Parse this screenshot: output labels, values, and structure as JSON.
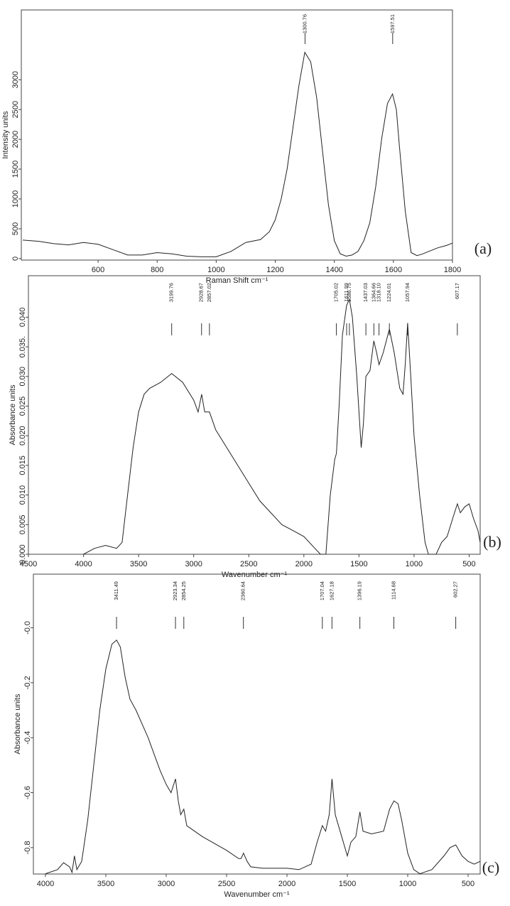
{
  "chart_data": [
    {
      "type": "line",
      "x_label": "Raman Shift cm⁻¹",
      "y_label": "Intensity units",
      "panel_label": "(a)",
      "xlim": [
        340,
        1800
      ],
      "ylim": [
        -25,
        4170
      ],
      "xticks": [
        600,
        800,
        1000,
        1200,
        1400,
        1600,
        1800
      ],
      "yticks": [
        0,
        500,
        1000,
        1500,
        2000,
        2500,
        3000
      ],
      "color": "#222222",
      "peaks": [
        1300.76,
        1597.51
      ],
      "x": [
        345,
        400,
        450,
        500,
        550,
        600,
        650,
        700,
        750,
        800,
        850,
        900,
        950,
        1000,
        1050,
        1100,
        1150,
        1180,
        1200,
        1220,
        1240,
        1260,
        1280,
        1300,
        1320,
        1340,
        1360,
        1380,
        1400,
        1420,
        1440,
        1460,
        1480,
        1500,
        1520,
        1540,
        1560,
        1580,
        1597,
        1610,
        1620,
        1640,
        1660,
        1680,
        1700,
        1720,
        1750,
        1780,
        1800
      ],
      "values": [
        310,
        290,
        250,
        230,
        270,
        240,
        150,
        60,
        60,
        100,
        80,
        40,
        30,
        30,
        120,
        270,
        320,
        450,
        650,
        1000,
        1500,
        2200,
        2900,
        3460,
        3300,
        2700,
        1800,
        900,
        300,
        80,
        40,
        60,
        120,
        300,
        600,
        1200,
        2000,
        2600,
        2760,
        2500,
        1900,
        800,
        100,
        50,
        80,
        120,
        180,
        220,
        260
      ]
    },
    {
      "type": "line",
      "x_label": "Wavenumber cm⁻¹",
      "y_label": "Absorbance units",
      "panel_label": "(b)",
      "xlim": [
        4500,
        400
      ],
      "ylim": [
        0,
        0.047
      ],
      "xticks": [
        4500,
        4000,
        3500,
        3000,
        2500,
        2000,
        1500,
        1000,
        500
      ],
      "yticks": [
        {
          "value": 0,
          "label": "0.000"
        },
        {
          "value": 0.005,
          "label": "0.005"
        },
        {
          "value": 0.01,
          "label": "0.010"
        },
        {
          "value": 0.015,
          "label": "0.015"
        },
        {
          "value": 0.02,
          "label": "0.020"
        },
        {
          "value": 0.025,
          "label": "0.025"
        },
        {
          "value": 0.03,
          "label": "0.030"
        },
        {
          "value": 0.035,
          "label": "0.035."
        },
        {
          "value": 0.04,
          "label": "0.040"
        }
      ],
      "color": "#222222",
      "peaks": [
        3199.76,
        2928.67,
        2857.02,
        1705.02,
        1611.99,
        1586.75,
        1437.03,
        1364.66,
        {
          "value": 1318.1,
          "label": "1318.10"
        },
        1224.01,
        1057.94,
        607.17
      ],
      "x": [
        4000,
        3900,
        3800,
        3700,
        3650,
        3600,
        3550,
        3500,
        3450,
        3400,
        3300,
        3200,
        3100,
        3000,
        2960,
        2928,
        2900,
        2857,
        2800,
        2700,
        2600,
        2500,
        2400,
        2300,
        2200,
        2100,
        2000,
        1900,
        1850,
        1800,
        1760,
        1720,
        1705,
        1680,
        1650,
        1612,
        1587,
        1560,
        1520,
        1480,
        1460,
        1437,
        1400,
        1365,
        1340,
        1318,
        1280,
        1224,
        1180,
        1130,
        1100,
        1080,
        1058,
        1030,
        1000,
        950,
        900,
        870,
        800,
        750,
        700,
        650,
        607,
        580,
        540,
        500,
        460,
        420,
        400
      ],
      "values": [
        0,
        0.001,
        0.0015,
        0.001,
        0.002,
        0.01,
        0.018,
        0.024,
        0.027,
        0.028,
        0.029,
        0.0305,
        0.029,
        0.026,
        0.024,
        0.027,
        0.024,
        0.024,
        0.021,
        0.018,
        0.015,
        0.012,
        0.009,
        0.007,
        0.005,
        0.004,
        0.003,
        0.001,
        0,
        0,
        0.01,
        0.016,
        0.017,
        0.025,
        0.037,
        0.042,
        0.043,
        0.04,
        0.03,
        0.018,
        0.022,
        0.03,
        0.031,
        0.036,
        0.034,
        0.032,
        0.034,
        0.038,
        0.034,
        0.028,
        0.027,
        0.032,
        0.039,
        0.03,
        0.02,
        0.01,
        0.002,
        0,
        0,
        0.002,
        0.003,
        0.006,
        0.0085,
        0.007,
        0.008,
        0.0085,
        0.006,
        0.004,
        0.002
      ]
    },
    {
      "type": "line",
      "x_label": "Wavenumber cm⁻¹",
      "y_label": "Absorbance units",
      "panel_label": "(c)",
      "xlim": [
        4100,
        400
      ],
      "ylim": [
        -0.896,
        0.195
      ],
      "xticks": [
        4000,
        3500,
        3000,
        2500,
        2000,
        1500,
        1000,
        500
      ],
      "yticks": [
        {
          "value": 0,
          "label": "-0.0"
        },
        -0.2,
        -0.4,
        -0.6,
        -0.8
      ],
      "color": "#222222",
      "peaks": [
        3411.49,
        2923.34,
        2854.25,
        2360.64,
        1707.04,
        1627.18,
        1396.19,
        1114.68,
        602.27
      ],
      "x": [
        4000,
        3900,
        3850,
        3800,
        3780,
        3760,
        3740,
        3700,
        3650,
        3600,
        3550,
        3500,
        3450,
        3411,
        3380,
        3340,
        3300,
        3250,
        3200,
        3150,
        3100,
        3050,
        3000,
        2960,
        2923,
        2900,
        2880,
        2854,
        2830,
        2700,
        2500,
        2400,
        2380,
        2360,
        2330,
        2300,
        2200,
        2000,
        1900,
        1850,
        1800,
        1750,
        1707,
        1680,
        1650,
        1627,
        1600,
        1560,
        1520,
        1500,
        1470,
        1430,
        1396,
        1370,
        1300,
        1200,
        1150,
        1114,
        1080,
        1050,
        1000,
        950,
        900,
        800,
        700,
        650,
        602,
        550,
        500,
        450,
        400
      ],
      "values": [
        -0.895,
        -0.88,
        -0.855,
        -0.87,
        -0.89,
        -0.83,
        -0.88,
        -0.85,
        -0.7,
        -0.5,
        -0.3,
        -0.15,
        -0.06,
        -0.045,
        -0.07,
        -0.18,
        -0.26,
        -0.3,
        -0.35,
        -0.4,
        -0.46,
        -0.52,
        -0.57,
        -0.6,
        -0.55,
        -0.63,
        -0.68,
        -0.66,
        -0.72,
        -0.76,
        -0.81,
        -0.84,
        -0.84,
        -0.82,
        -0.85,
        -0.87,
        -0.875,
        -0.875,
        -0.88,
        -0.87,
        -0.86,
        -0.78,
        -0.72,
        -0.74,
        -0.68,
        -0.55,
        -0.68,
        -0.74,
        -0.8,
        -0.83,
        -0.78,
        -0.76,
        -0.67,
        -0.74,
        -0.75,
        -0.74,
        -0.66,
        -0.63,
        -0.64,
        -0.7,
        -0.82,
        -0.88,
        -0.895,
        -0.88,
        -0.83,
        -0.8,
        -0.79,
        -0.83,
        -0.85,
        -0.86,
        -0.85
      ]
    }
  ]
}
